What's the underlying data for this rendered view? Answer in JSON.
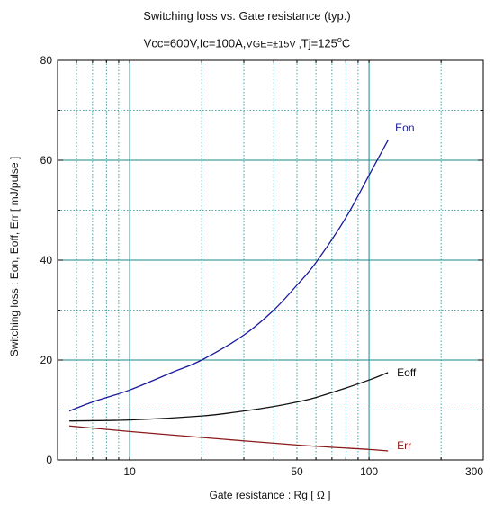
{
  "chart_data": {
    "type": "line",
    "title": "Switching loss  vs.  Gate resistance (typ.)",
    "subtitle": {
      "prefix": "Vcc=600V,Ic=100A,",
      "vge": "VGE=±15V ,",
      "tj": "Tj=125",
      "tj_sup": "o",
      "tj_unit": "C"
    },
    "xlabel": "Gate resistance : Rg  [   Ω ]",
    "ylabel": "Switching loss  :  Eon, Eoff, Err  [ mJ/pulse ]",
    "x_scale": "log",
    "xlim": [
      5,
      300
    ],
    "ylim": [
      0,
      80
    ],
    "x_ticks": [
      10,
      50,
      100,
      300
    ],
    "y_ticks": [
      0,
      20,
      40,
      60,
      80
    ],
    "grid": true,
    "grid_color": "#1a8a8a",
    "series": [
      {
        "name": "Eon",
        "color": "#1a1a9e",
        "x": [
          5.6,
          7,
          10,
          15,
          20,
          30,
          40,
          50,
          60,
          80,
          100,
          120
        ],
        "y": [
          9.8,
          11.6,
          14.0,
          17.5,
          20.0,
          25.0,
          30.0,
          35.0,
          39.5,
          48.5,
          57.0,
          64.0
        ]
      },
      {
        "name": "Eoff",
        "color": "#111111",
        "x": [
          5.6,
          10,
          20,
          30,
          40,
          50,
          60,
          80,
          100,
          120
        ],
        "y": [
          7.8,
          8.0,
          8.8,
          9.8,
          10.7,
          11.6,
          12.5,
          14.4,
          16.0,
          17.5
        ]
      },
      {
        "name": "Err",
        "color": "#8b1a1a",
        "x": [
          5.6,
          10,
          20,
          50,
          100,
          120
        ],
        "y": [
          6.8,
          5.7,
          4.5,
          3.0,
          2.1,
          1.8
        ]
      }
    ]
  }
}
